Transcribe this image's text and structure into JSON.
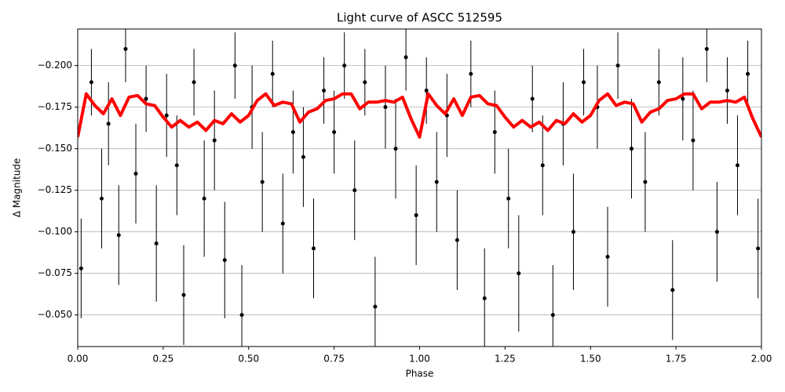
{
  "chart_data": {
    "type": "errorbar",
    "title": "Light curve of ASCC 512595",
    "xlabel": "Phase",
    "ylabel": "Δ Magnitude",
    "xlim": [
      0,
      2
    ],
    "ylim": [
      -0.222,
      -0.031
    ],
    "y_inverted": true,
    "grid": "y",
    "xticks": [
      {
        "value": 0,
        "label": "0.00"
      },
      {
        "value": 0.25,
        "label": "0.25"
      },
      {
        "value": 0.5,
        "label": "0.50"
      },
      {
        "value": 0.75,
        "label": "0.75"
      },
      {
        "value": 1,
        "label": "1.00"
      },
      {
        "value": 1.25,
        "label": "1.25"
      },
      {
        "value": 1.5,
        "label": "1.50"
      },
      {
        "value": 1.75,
        "label": "1.75"
      },
      {
        "value": 2,
        "label": "2.00"
      }
    ],
    "yticks": [
      {
        "value": -0.2,
        "label": "−0.200"
      },
      {
        "value": -0.175,
        "label": "−0.175"
      },
      {
        "value": -0.15,
        "label": "−0.150"
      },
      {
        "value": -0.125,
        "label": "−0.125"
      },
      {
        "value": -0.1,
        "label": "−0.100"
      },
      {
        "value": -0.075,
        "label": "−0.075"
      },
      {
        "value": -0.05,
        "label": "−0.050"
      }
    ],
    "points": {
      "color": "#000000",
      "x": [
        0.01,
        0.04,
        0.07,
        0.09,
        0.12,
        0.14,
        0.17,
        0.2,
        0.23,
        0.26,
        0.29,
        0.31,
        0.34,
        0.37,
        0.4,
        0.43,
        0.46,
        0.48,
        0.51,
        0.54,
        0.57,
        0.6,
        0.63,
        0.66,
        0.69,
        0.72,
        0.75,
        0.78,
        0.81,
        0.84,
        0.87,
        0.9,
        0.93,
        0.96,
        0.99,
        1.02,
        1.05,
        1.08,
        1.11,
        1.15,
        1.19,
        1.22,
        1.26,
        1.29,
        1.33,
        1.36,
        1.39,
        1.42,
        1.45,
        1.48,
        1.52,
        1.55,
        1.58,
        1.62,
        1.66,
        1.7,
        1.74,
        1.77,
        1.8,
        1.84,
        1.87,
        1.9,
        1.93,
        1.96,
        1.99
      ],
      "y": [
        -0.078,
        -0.19,
        -0.12,
        -0.165,
        -0.098,
        -0.21,
        -0.135,
        -0.18,
        -0.093,
        -0.17,
        -0.14,
        -0.062,
        -0.19,
        -0.12,
        -0.155,
        -0.083,
        -0.2,
        -0.05,
        -0.175,
        -0.13,
        -0.195,
        -0.105,
        -0.16,
        -0.145,
        -0.09,
        -0.185,
        -0.16,
        -0.2,
        -0.125,
        -0.19,
        -0.055,
        -0.175,
        -0.15,
        -0.205,
        -0.11,
        -0.185,
        -0.13,
        -0.17,
        -0.095,
        -0.195,
        -0.06,
        -0.16,
        -0.12,
        -0.075,
        -0.18,
        -0.14,
        -0.05,
        -0.165,
        -0.1,
        -0.19,
        -0.175,
        -0.085,
        -0.2,
        -0.15,
        -0.13,
        -0.19,
        -0.065,
        -0.18,
        -0.155,
        -0.21,
        -0.1,
        -0.185,
        -0.14,
        -0.195,
        -0.09
      ],
      "yerr": [
        0.03,
        0.02,
        0.03,
        0.025,
        0.03,
        0.02,
        0.03,
        0.02,
        0.035,
        0.025,
        0.03,
        0.03,
        0.02,
        0.035,
        0.03,
        0.035,
        0.02,
        0.03,
        0.025,
        0.03,
        0.02,
        0.03,
        0.025,
        0.03,
        0.03,
        0.02,
        0.025,
        0.02,
        0.03,
        0.02,
        0.03,
        0.025,
        0.03,
        0.02,
        0.03,
        0.02,
        0.03,
        0.025,
        0.03,
        0.02,
        0.03,
        0.025,
        0.03,
        0.035,
        0.02,
        0.03,
        0.03,
        0.025,
        0.035,
        0.02,
        0.025,
        0.03,
        0.02,
        0.03,
        0.03,
        0.02,
        0.03,
        0.025,
        0.03,
        0.02,
        0.03,
        0.02,
        0.03,
        0.02,
        0.03
      ]
    },
    "binned": {
      "color": "#ff0000",
      "x": [
        0,
        0.025,
        0.05,
        0.075,
        0.1,
        0.125,
        0.15,
        0.175,
        0.2,
        0.225,
        0.25,
        0.275,
        0.3,
        0.325,
        0.35,
        0.375,
        0.4,
        0.425,
        0.45,
        0.475,
        0.5,
        0.525,
        0.55,
        0.575,
        0.6,
        0.625,
        0.65,
        0.675,
        0.7,
        0.725,
        0.75,
        0.775,
        0.8,
        0.825,
        0.85,
        0.875,
        0.9,
        0.925,
        0.95,
        0.975,
        1,
        1.025,
        1.05,
        1.075,
        1.1,
        1.125,
        1.15,
        1.175,
        1.2,
        1.225,
        1.25,
        1.275,
        1.3,
        1.325,
        1.35,
        1.375,
        1.4,
        1.425,
        1.45,
        1.475,
        1.5,
        1.525,
        1.55,
        1.575,
        1.6,
        1.625,
        1.65,
        1.675,
        1.7,
        1.725,
        1.75,
        1.775,
        1.8,
        1.825,
        1.85,
        1.875,
        1.9,
        1.925,
        1.95,
        1.975,
        2
      ],
      "y": [
        -0.157,
        -0.183,
        -0.176,
        -0.171,
        -0.18,
        -0.17,
        -0.181,
        -0.182,
        -0.177,
        -0.176,
        -0.169,
        -0.163,
        -0.167,
        -0.163,
        -0.166,
        -0.161,
        -0.167,
        -0.165,
        -0.171,
        -0.166,
        -0.17,
        -0.179,
        -0.183,
        -0.176,
        -0.178,
        -0.177,
        -0.166,
        -0.172,
        -0.174,
        -0.179,
        -0.18,
        -0.183,
        -0.183,
        -0.174,
        -0.178,
        -0.178,
        -0.179,
        -0.178,
        -0.181,
        -0.168,
        -0.157,
        -0.183,
        -0.176,
        -0.171,
        -0.18,
        -0.17,
        -0.181,
        -0.182,
        -0.177,
        -0.176,
        -0.169,
        -0.163,
        -0.167,
        -0.163,
        -0.166,
        -0.161,
        -0.167,
        -0.165,
        -0.171,
        -0.166,
        -0.17,
        -0.179,
        -0.183,
        -0.176,
        -0.178,
        -0.177,
        -0.166,
        -0.172,
        -0.174,
        -0.179,
        -0.18,
        -0.183,
        -0.183,
        -0.174,
        -0.178,
        -0.178,
        -0.179,
        -0.178,
        -0.181,
        -0.168,
        -0.157
      ]
    }
  }
}
